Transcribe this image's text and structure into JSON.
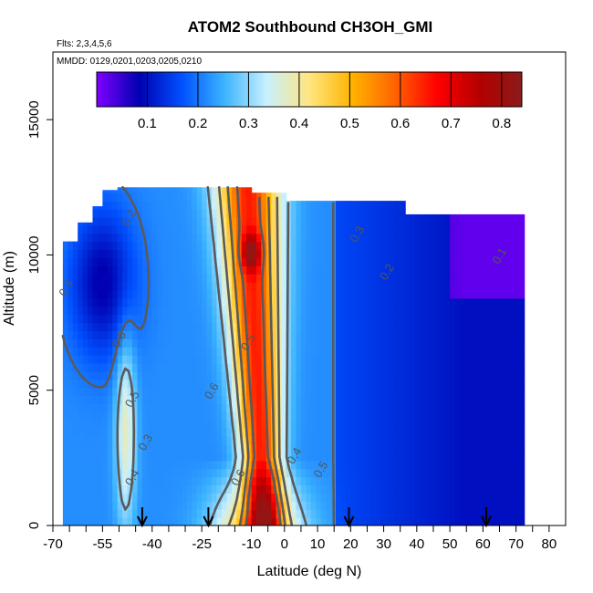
{
  "chart_data": {
    "type": "heatmap",
    "title": "ATOM2 Southbound CH3OH_GMI",
    "flights_note": "Flts: 2,3,4,5,6",
    "dates_note": "MMDD: 0129,0201,0203,0205,0210",
    "xlabel": "Latitude (deg N)",
    "ylabel": "Altitude (m)",
    "xlim": [
      -70,
      85
    ],
    "ylim": [
      0,
      17500
    ],
    "x_ticks": [
      -70,
      -65,
      -60,
      -55,
      -50,
      -45,
      -40,
      -35,
      -30,
      -25,
      -20,
      -15,
      -10,
      -5,
      0,
      5,
      10,
      15,
      20,
      25,
      30,
      35,
      40,
      45,
      50,
      55,
      60,
      65,
      70,
      75,
      80
    ],
    "x_tick_labels": [
      "-70",
      "",
      "",
      "-55",
      "",
      "",
      "-40",
      "",
      "",
      "-25",
      "",
      "",
      "-10",
      "",
      "0",
      "",
      "10",
      "",
      "20",
      "",
      "30",
      "",
      "40",
      "",
      "50",
      "",
      "60",
      "",
      "70",
      "",
      "80"
    ],
    "y_ticks": [
      0,
      5000,
      10000,
      15000
    ],
    "y_tick_labels": [
      "0",
      "5000",
      "10000",
      "15000"
    ],
    "colorbar": {
      "range": [
        0.0,
        0.84
      ],
      "ticks": [
        0.1,
        0.2,
        0.3,
        0.4,
        0.5,
        0.6,
        0.7,
        0.8
      ],
      "tick_labels": [
        "0.1",
        "0.2",
        "0.3",
        "0.4",
        "0.5",
        "0.6",
        "0.7",
        "0.8"
      ],
      "colors": [
        "#7f00ff",
        "#0000b0",
        "#0050ff",
        "#3cb4ff",
        "#c8f0ff",
        "#ffe680",
        "#ffb400",
        "#ff6400",
        "#ff0000",
        "#b40000",
        "#8b1a1a"
      ]
    },
    "contour_labels": [
      {
        "text": "0.2",
        "lat": -46,
        "alt": 11300
      },
      {
        "text": "0.3",
        "lat": 23,
        "alt": 10700
      },
      {
        "text": "0.2",
        "lat": 32,
        "alt": 9300
      },
      {
        "text": "0.1",
        "lat": 66,
        "alt": 9900
      },
      {
        "text": "0.3",
        "lat": -65,
        "alt": 8700
      },
      {
        "text": "0.6",
        "lat": -49,
        "alt": 6800
      },
      {
        "text": "0.5",
        "lat": -10,
        "alt": 6700
      },
      {
        "text": "0.6",
        "lat": -21,
        "alt": 4900
      },
      {
        "text": "0.5",
        "lat": -45,
        "alt": 4600
      },
      {
        "text": "0.3",
        "lat": -41,
        "alt": 3000
      },
      {
        "text": "0.4",
        "lat": 4,
        "alt": 2500
      },
      {
        "text": "0.5",
        "lat": 12,
        "alt": 2000
      },
      {
        "text": "0.4",
        "lat": -45,
        "alt": 1700
      },
      {
        "text": "0.6",
        "lat": -13,
        "alt": 1700
      }
    ],
    "flight_markers_lat": [
      -43,
      -23,
      19.5,
      61
    ],
    "field_description": "Vertical curtain of CH3OH_GMI mixing ratio vs latitude and altitude, colored by the colorbar scale",
    "regions": [
      {
        "lat_range": [
          -20,
          0
        ],
        "alt_range": [
          0,
          2500
        ],
        "value": 0.75
      },
      {
        "lat_range": [
          -18,
          6
        ],
        "alt_range": [
          2500,
          11500
        ],
        "value": 0.6
      },
      {
        "lat_range": [
          -12,
          -8
        ],
        "alt_range": [
          9800,
          10400
        ],
        "value": 0.78
      },
      {
        "lat_range": [
          -66,
          -47
        ],
        "alt_range": [
          7000,
          10500
        ],
        "value": 0.15
      },
      {
        "lat_range": [
          15,
          72
        ],
        "alt_range": [
          0,
          11000
        ],
        "value": 0.2
      },
      {
        "lat_range": [
          48,
          72
        ],
        "alt_range": [
          9000,
          11000
        ],
        "value": 0.1
      }
    ]
  }
}
